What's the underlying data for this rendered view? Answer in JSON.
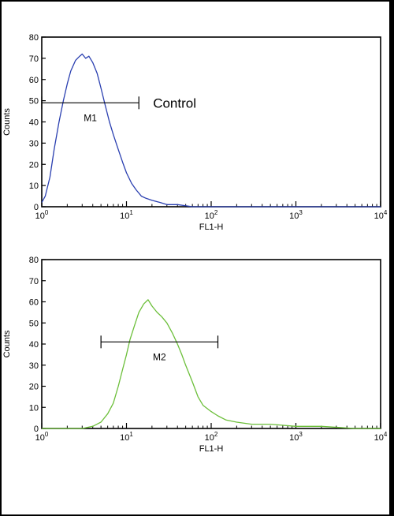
{
  "chart_data": [
    {
      "type": "line",
      "xscale": "log",
      "xlim": [
        1,
        10000
      ],
      "ylim": [
        0,
        80
      ],
      "yticks": [
        0,
        10,
        20,
        30,
        40,
        50,
        60,
        70,
        80
      ],
      "xticks": [
        1,
        10,
        100,
        1000,
        10000
      ],
      "xtick_labels": [
        {
          "base": "10",
          "exp": "0"
        },
        {
          "base": "10",
          "exp": "1"
        },
        {
          "base": "10",
          "exp": "2"
        },
        {
          "base": "10",
          "exp": "3"
        },
        {
          "base": "10",
          "exp": "4"
        }
      ],
      "xlabel": "FL1-H",
      "ylabel": "Counts",
      "color": "#2a3fb0",
      "series": [
        {
          "x": [
            1.0,
            1.1,
            1.25,
            1.4,
            1.6,
            1.8,
            2.0,
            2.2,
            2.5,
            2.8,
            3.0,
            3.3,
            3.6,
            4.0,
            4.5,
            5.0,
            5.6,
            6.3,
            7.0,
            8.0,
            9.0,
            10.0,
            11.5,
            13.0,
            15.0,
            17.0,
            20.0,
            25.0,
            30.0,
            40.0,
            60.0,
            100.0,
            300.0,
            1000.0,
            10000.0
          ],
          "y": [
            2,
            5,
            14,
            27,
            40,
            50,
            58,
            64,
            69,
            71,
            72,
            70,
            71,
            68,
            63,
            56,
            48,
            40,
            34,
            27,
            21,
            16,
            11,
            8,
            5,
            4,
            3,
            2,
            1,
            1,
            0,
            0,
            0,
            0,
            0
          ]
        }
      ],
      "marker": {
        "label": "M1",
        "x1": 1.0,
        "x2": 14.0,
        "y": 49
      },
      "annotation": "Control"
    },
    {
      "type": "line",
      "xscale": "log",
      "xlim": [
        1,
        10000
      ],
      "ylim": [
        0,
        80
      ],
      "yticks": [
        0,
        10,
        20,
        30,
        40,
        50,
        60,
        70,
        80
      ],
      "xticks": [
        1,
        10,
        100,
        1000,
        10000
      ],
      "xtick_labels": [
        {
          "base": "10",
          "exp": "0"
        },
        {
          "base": "10",
          "exp": "1"
        },
        {
          "base": "10",
          "exp": "2"
        },
        {
          "base": "10",
          "exp": "3"
        },
        {
          "base": "10",
          "exp": "4"
        }
      ],
      "xlabel": "FL1-H",
      "ylabel": "Counts",
      "color": "#6cbf3a",
      "series": [
        {
          "x": [
            1.0,
            2.0,
            3.0,
            4.0,
            5.0,
            6.0,
            7.0,
            8.0,
            9.0,
            10.0,
            11.0,
            12.5,
            14.0,
            16.0,
            18.0,
            20.0,
            23.0,
            26.0,
            30.0,
            35.0,
            40.0,
            45.0,
            50.0,
            60.0,
            70.0,
            80.0,
            100.0,
            120.0,
            150.0,
            200.0,
            300.0,
            500.0,
            1000.0,
            2000.0,
            5000.0,
            10000.0
          ],
          "y": [
            0,
            0,
            0,
            1,
            3,
            7,
            12,
            20,
            28,
            35,
            42,
            49,
            55,
            59,
            61,
            58,
            55,
            53,
            50,
            45,
            40,
            35,
            30,
            22,
            15,
            11,
            8,
            6,
            4,
            3,
            2,
            2,
            1,
            1,
            0,
            0
          ]
        }
      ],
      "marker": {
        "label": "M2",
        "x1": 5.0,
        "x2": 120.0,
        "y": 41
      }
    }
  ]
}
